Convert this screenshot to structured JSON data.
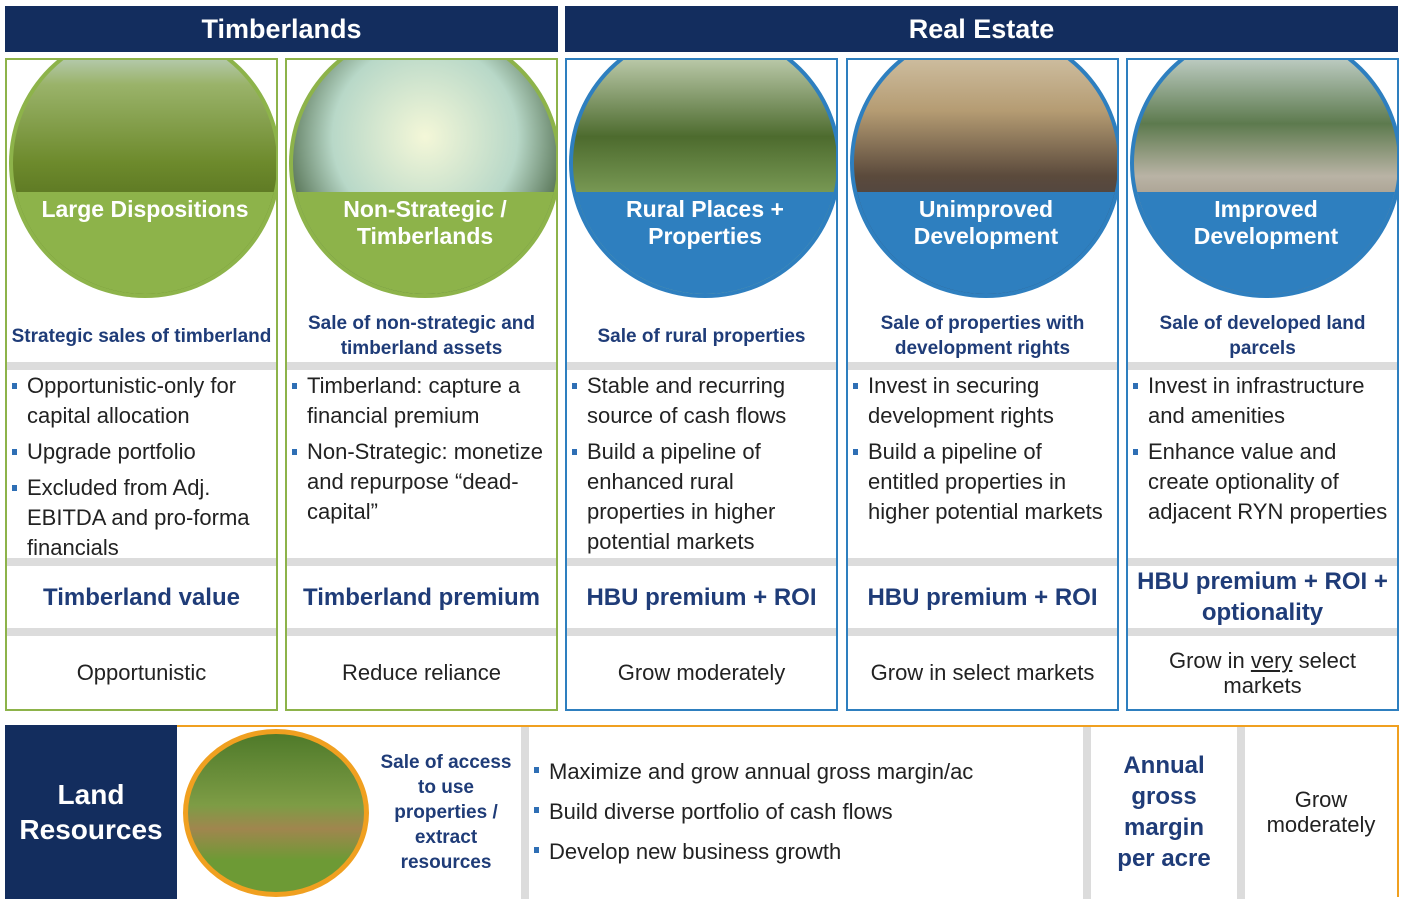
{
  "headers": [
    "Timberlands",
    "Real Estate"
  ],
  "columns": [
    {
      "label": "Large Dispositions",
      "subtitle": "Strategic sales of timberland",
      "bullets": [
        "Opportunistic-only for capital allocation",
        "Upgrade portfolio",
        "Excluded from Adj. EBITDA and pro-forma financials"
      ],
      "metric": "Timberland value",
      "outlook": [
        "Opportunistic"
      ]
    },
    {
      "label": "Non-Strategic / Timberlands",
      "subtitle": "Sale of non-strategic and timberland assets",
      "bullets": [
        "Timberland: capture a financial premium",
        "Non-Strategic: monetize and repurpose “dead-capital”"
      ],
      "metric": "Timberland premium",
      "outlook": [
        "Reduce reliance"
      ]
    },
    {
      "label": "Rural Places + Properties",
      "subtitle": "Sale of rural properties",
      "bullets": [
        "Stable and recurring source of cash flows",
        "Build a pipeline of enhanced rural properties in higher potential markets"
      ],
      "metric": "HBU premium + ROI",
      "outlook": [
        "Grow moderately"
      ]
    },
    {
      "label": "Unimproved Development",
      "subtitle": "Sale of properties with development rights",
      "bullets": [
        "Invest in securing development rights",
        "Build a pipeline of entitled properties in higher potential markets"
      ],
      "metric": "HBU premium + ROI",
      "outlook": [
        "Grow in select markets"
      ]
    },
    {
      "label": "Improved Development",
      "subtitle": "Sale of developed land parcels",
      "bullets": [
        "Invest in infrastructure and amenities",
        "Enhance value and create optionality of adjacent RYN properties"
      ],
      "metric": "HBU premium + ROI + optionality",
      "outlook": [
        "Grow in",
        "very",
        "select markets"
      ]
    }
  ],
  "land_resources": {
    "title": "Land Resources",
    "subtitle": "Sale of access to use properties / extract resources",
    "bullets": [
      "Maximize and grow annual gross margin/ac",
      "Build diverse portfolio of cash flows",
      "Develop new business growth"
    ],
    "metric": "Annual gross margin per acre",
    "outlook": [
      "Grow moderately"
    ]
  }
}
